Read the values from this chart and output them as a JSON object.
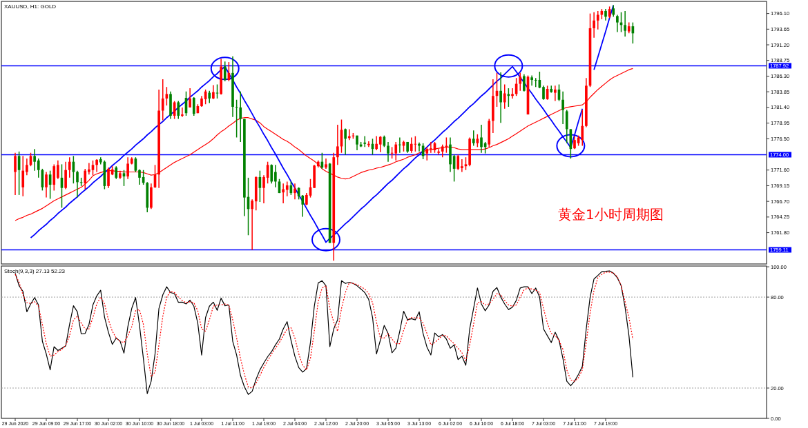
{
  "chart_data": [
    {
      "type": "candlestick",
      "title": "XAUUSD, H1: GOLD",
      "categories": [
        null,
        null,
        null,
        null,
        null,
        null,
        null,
        null,
        null,
        null,
        null,
        null,
        null,
        null,
        null,
        null,
        null,
        null,
        null,
        null,
        null,
        null,
        null,
        null,
        null,
        null,
        null,
        null,
        null,
        null,
        null,
        null,
        null,
        null,
        null,
        null,
        null,
        null,
        null,
        null,
        null,
        null,
        null,
        null,
        null,
        null,
        null,
        null,
        null,
        null,
        null,
        null,
        null,
        null,
        null,
        null,
        null,
        null,
        null,
        null,
        null,
        null,
        null,
        null,
        null,
        null,
        null,
        null,
        null,
        null,
        null,
        null,
        null,
        null,
        null,
        null,
        null,
        null,
        null,
        null,
        null,
        null,
        null,
        null,
        null,
        null,
        null,
        null,
        null,
        null,
        null,
        null,
        null,
        null,
        null,
        null,
        null,
        null,
        null,
        null,
        null,
        null,
        null,
        null,
        null,
        null,
        null,
        null,
        null,
        null,
        null,
        null,
        null,
        null,
        null,
        null,
        null,
        null,
        null,
        null,
        null,
        null,
        null,
        null,
        null,
        null,
        null,
        null,
        null,
        null,
        null,
        null,
        null,
        null,
        null,
        null,
        null,
        null,
        null,
        null,
        null,
        null,
        null,
        null,
        null,
        null,
        null,
        null,
        null,
        null,
        null,
        null,
        null,
        null,
        null,
        null,
        null,
        null,
        null,
        null
      ],
      "ohlc": [
        [
          1771.3,
          1774.3,
          1767.7,
          1773.8
        ],
        [
          1773.8,
          1774.5,
          1767.7,
          1771.6
        ],
        [
          1768.9,
          1773.8,
          1767.5,
          1771.5
        ],
        [
          1771.3,
          1773.4,
          1770.8,
          1772.4
        ],
        [
          1772.4,
          1774.3,
          1772.2,
          1773.8
        ],
        [
          1773.8,
          1774.9,
          1771.5,
          1772.9
        ],
        [
          1773.1,
          1773.4,
          1770.4,
          1771.6
        ],
        [
          1771.6,
          1771.8,
          1768.4,
          1768.9
        ],
        [
          1768.9,
          1771.3,
          1767.3,
          1770.9
        ],
        [
          1770.9,
          1771.5,
          1767.1,
          1769.3
        ],
        [
          1769.3,
          1772.5,
          1768.4,
          1772.2
        ],
        [
          1770.4,
          1773.1,
          1770.2,
          1772.4
        ],
        [
          1770.4,
          1772.5,
          1765.7,
          1768.8
        ],
        [
          1768.8,
          1772.9,
          1768.6,
          1771.6
        ],
        [
          1771.6,
          1773.6,
          1770.4,
          1772.9
        ],
        [
          1772.9,
          1773.8,
          1769.5,
          1771.3
        ],
        [
          1771.3,
          1771.5,
          1767.3,
          1769.7
        ],
        [
          1769.7,
          1770.4,
          1769.1,
          1769.6
        ],
        [
          1769.5,
          1771.8,
          1768.6,
          1771.5
        ],
        [
          1771.3,
          1772.7,
          1770.9,
          1771.7
        ],
        [
          1771.6,
          1773.1,
          1770.8,
          1772.4
        ],
        [
          1772.4,
          1773.3,
          1771.3,
          1773.2
        ],
        [
          1773.3,
          1773.6,
          1772.5,
          1772.8
        ],
        [
          1772.9,
          1773.1,
          1768.6,
          1769.1
        ],
        [
          1769.1,
          1772.0,
          1768.8,
          1771.8
        ],
        [
          1770.9,
          1772.2,
          1770.8,
          1771.7
        ],
        [
          1772.0,
          1772.2,
          1770.2,
          1770.4
        ],
        [
          1770.4,
          1771.5,
          1770.2,
          1771.1
        ],
        [
          1771.1,
          1771.6,
          1769.1,
          1770.6
        ],
        [
          1770.6,
          1773.6,
          1770.2,
          1772.6
        ],
        [
          1772.6,
          1773.6,
          1772.5,
          1773.4
        ],
        [
          1773.4,
          1773.6,
          1771.3,
          1771.5
        ],
        [
          1771.6,
          1771.7,
          1769.3,
          1770.4
        ],
        [
          1770.5,
          1771.6,
          1769.3,
          1769.6
        ],
        [
          1769.6,
          1769.7,
          1765.0,
          1765.7
        ],
        [
          1765.7,
          1769.5,
          1765.5,
          1768.9
        ],
        [
          1768.9,
          1772.4,
          1768.8,
          1770.9
        ],
        [
          1770.9,
          1784.2,
          1768.8,
          1780.9
        ],
        [
          1780.9,
          1785.8,
          1779.4,
          1782.8
        ],
        [
          1782.8,
          1784.6,
          1781.7,
          1783.5
        ],
        [
          1783.5,
          1783.9,
          1779.6,
          1780.1
        ],
        [
          1780.1,
          1782.4,
          1779.6,
          1782.2
        ],
        [
          1782.2,
          1782.4,
          1779.6,
          1780.1
        ],
        [
          1780.1,
          1781.4,
          1779.9,
          1780.3
        ],
        [
          1782.9,
          1783.9,
          1780.1,
          1780.5
        ],
        [
          1781.4,
          1784.4,
          1781.4,
          1782.8
        ],
        [
          1782.9,
          1783.0,
          1780.1,
          1780.4
        ],
        [
          1780.5,
          1781.9,
          1780.5,
          1781.6
        ],
        [
          1781.6,
          1783.2,
          1781.5,
          1782.8
        ],
        [
          1782.7,
          1784.2,
          1781.9,
          1783.9
        ],
        [
          1783.7,
          1784.0,
          1782.1,
          1782.8
        ],
        [
          1782.8,
          1784.9,
          1782.7,
          1783.8
        ],
        [
          1783.7,
          1785.0,
          1782.8,
          1783.6
        ],
        [
          1783.5,
          1789.0,
          1783.4,
          1787.8
        ],
        [
          1787.8,
          1788.6,
          1785.5,
          1785.7
        ],
        [
          1785.7,
          1788.5,
          1785.5,
          1786.8
        ],
        [
          1786.8,
          1789.4,
          1779.9,
          1781.5
        ],
        [
          1781.5,
          1782.6,
          1776.7,
          1781.4
        ],
        [
          1781.4,
          1783.9,
          1776.0,
          1779.6
        ],
        [
          1779.6,
          1779.6,
          1764.4,
          1767.3
        ],
        [
          1767.4,
          1770.4,
          1761.4,
          1765.5
        ],
        [
          1765.5,
          1767.0,
          1759.1,
          1766.8
        ],
        [
          1766.7,
          1770.6,
          1765.3,
          1770.5
        ],
        [
          1770.5,
          1771.5,
          1766.6,
          1768.8
        ],
        [
          1768.8,
          1770.8,
          1766.4,
          1770.5
        ],
        [
          1770.4,
          1772.9,
          1769.5,
          1772.4
        ],
        [
          1772.4,
          1772.5,
          1769.5,
          1769.8
        ],
        [
          1771.3,
          1772.4,
          1768.9,
          1769.8
        ],
        [
          1769.8,
          1770.2,
          1768.0,
          1768.0
        ],
        [
          1768.1,
          1769.5,
          1766.4,
          1768.6
        ],
        [
          1768.5,
          1769.8,
          1767.5,
          1769.2
        ],
        [
          1769.2,
          1769.8,
          1767.7,
          1768.0
        ],
        [
          1768.0,
          1769.5,
          1767.0,
          1768.7
        ],
        [
          1768.8,
          1768.9,
          1767.0,
          1767.5
        ],
        [
          1767.6,
          1767.7,
          1764.3,
          1766.2
        ],
        [
          1766.2,
          1768.0,
          1766.1,
          1767.7
        ],
        [
          1767.6,
          1770.2,
          1767.3,
          1768.9
        ],
        [
          1768.8,
          1772.4,
          1768.8,
          1772.3
        ],
        [
          1772.2,
          1773.1,
          1772.0,
          1772.9
        ],
        [
          1772.9,
          1774.3,
          1771.8,
          1772.0
        ],
        [
          1772.0,
          1773.4,
          1771.8,
          1772.5
        ],
        [
          1772.6,
          1772.7,
          1760.2,
          1760.2
        ],
        [
          1760.2,
          1774.3,
          1757.4,
          1773.6
        ],
        [
          1773.6,
          1778.7,
          1772.4,
          1775.3
        ],
        [
          1775.3,
          1779.5,
          1774.3,
          1777.9
        ],
        [
          1778.0,
          1778.1,
          1774.0,
          1776.5
        ],
        [
          1776.6,
          1778.0,
          1776.3,
          1776.9
        ],
        [
          1776.9,
          1777.4,
          1776.5,
          1777.0
        ],
        [
          1777.0,
          1777.0,
          1774.7,
          1775.6
        ],
        [
          1775.6,
          1776.0,
          1775.2,
          1775.3
        ],
        [
          1775.9,
          1776.9,
          1775.2,
          1775.7
        ],
        [
          1775.5,
          1776.1,
          1775.2,
          1775.7
        ],
        [
          1775.7,
          1776.5,
          1774.0,
          1774.9
        ],
        [
          1774.9,
          1776.9,
          1774.7,
          1775.7
        ],
        [
          1775.6,
          1776.9,
          1774.4,
          1776.8
        ],
        [
          1776.8,
          1777.0,
          1775.2,
          1775.4
        ],
        [
          1775.4,
          1776.0,
          1772.9,
          1774.2
        ],
        [
          1774.2,
          1775.2,
          1773.4,
          1774.3
        ],
        [
          1774.2,
          1776.0,
          1773.1,
          1775.6
        ],
        [
          1775.6,
          1776.7,
          1774.3,
          1775.5
        ],
        [
          1775.4,
          1776.2,
          1774.5,
          1776.0
        ],
        [
          1776.0,
          1776.0,
          1774.3,
          1774.5
        ],
        [
          1774.6,
          1776.7,
          1774.3,
          1775.7
        ],
        [
          1775.6,
          1776.9,
          1774.5,
          1775.7
        ],
        [
          1775.7,
          1775.9,
          1774.5,
          1775.4
        ],
        [
          1775.4,
          1775.8,
          1773.3,
          1773.8
        ],
        [
          1774.2,
          1775.2,
          1773.1,
          1774.9
        ],
        [
          1774.9,
          1776.0,
          1774.3,
          1775.0
        ],
        [
          1774.7,
          1776.0,
          1774.3,
          1775.8
        ],
        [
          1774.3,
          1774.9,
          1774.0,
          1774.5
        ],
        [
          1774.5,
          1775.6,
          1773.6,
          1775.3
        ],
        [
          1775.2,
          1776.7,
          1774.3,
          1775.4
        ],
        [
          1775.6,
          1776.7,
          1771.3,
          1772.5
        ],
        [
          1773.8,
          1774.0,
          1769.8,
          1771.8
        ],
        [
          1771.8,
          1774.0,
          1771.6,
          1773.8
        ],
        [
          1771.9,
          1773.3,
          1771.3,
          1772.2
        ],
        [
          1772.2,
          1773.6,
          1771.6,
          1772.5
        ],
        [
          1772.4,
          1776.7,
          1772.2,
          1776.5
        ],
        [
          1776.5,
          1777.8,
          1775.4,
          1775.8
        ],
        [
          1775.8,
          1777.2,
          1775.2,
          1776.5
        ],
        [
          1776.7,
          1778.7,
          1774.3,
          1775.2
        ],
        [
          1775.8,
          1776.0,
          1774.2,
          1775.2
        ],
        [
          1775.6,
          1779.6,
          1775.2,
          1779.3
        ],
        [
          1779.3,
          1785.8,
          1777.4,
          1783.2
        ],
        [
          1783.2,
          1786.8,
          1781.5,
          1784.0
        ],
        [
          1784.0,
          1786.9,
          1779.0,
          1782.2
        ],
        [
          1782.2,
          1785.0,
          1781.2,
          1783.6
        ],
        [
          1783.5,
          1784.4,
          1781.5,
          1783.2
        ],
        [
          1783.2,
          1784.4,
          1782.8,
          1783.5
        ],
        [
          1783.5,
          1786.0,
          1783.2,
          1785.1
        ],
        [
          1785.1,
          1786.8,
          1784.0,
          1786.2
        ],
        [
          1786.3,
          1786.6,
          1783.9,
          1784.0
        ],
        [
          1780.3,
          1786.4,
          1780.3,
          1786.2
        ],
        [
          1786.1,
          1786.4,
          1784.8,
          1785.7
        ],
        [
          1785.7,
          1786.0,
          1784.6,
          1785.6
        ],
        [
          1785.7,
          1787.0,
          1784.4,
          1784.5
        ],
        [
          1784.6,
          1784.8,
          1782.6,
          1782.7
        ],
        [
          1782.7,
          1784.8,
          1782.6,
          1784.3
        ],
        [
          1784.3,
          1784.8,
          1783.7,
          1783.8
        ],
        [
          1783.7,
          1784.8,
          1782.4,
          1784.2
        ],
        [
          1784.2,
          1785.0,
          1782.4,
          1782.6
        ],
        [
          1782.6,
          1783.9,
          1778.8,
          1781.0
        ],
        [
          1780.8,
          1781.0,
          1775.8,
          1778.0
        ],
        [
          1778.0,
          1778.0,
          1773.4,
          1774.9
        ],
        [
          1775.0,
          1776.9,
          1774.9,
          1776.3
        ],
        [
          1775.8,
          1777.0,
          1775.4,
          1776.7
        ],
        [
          1776.3,
          1781.0,
          1775.4,
          1778.5
        ],
        [
          1778.5,
          1786.0,
          1778.3,
          1784.8
        ],
        [
          1784.8,
          1796.1,
          1784.6,
          1793.8
        ],
        [
          1793.8,
          1796.3,
          1792.3,
          1795.0
        ],
        [
          1795.0,
          1796.5,
          1793.6,
          1795.9
        ],
        [
          1795.9,
          1796.8,
          1795.2,
          1796.5
        ],
        [
          1796.5,
          1796.8,
          1795.0,
          1795.6
        ],
        [
          1795.6,
          1797.2,
          1795.4,
          1796.8
        ],
        [
          1796.9,
          1797.4,
          1795.6,
          1795.9
        ],
        [
          1795.7,
          1795.9,
          1793.2,
          1794.7
        ],
        [
          1794.7,
          1796.3,
          1793.2,
          1794.3
        ],
        [
          1794.3,
          1796.5,
          1792.5,
          1793.4
        ],
        [
          1793.3,
          1794.7,
          1793.0,
          1794.1
        ],
        [
          1794.1,
          1794.7,
          1791.4,
          1793.0
        ]
      ],
      "series": [
        {
          "type": "line",
          "color": "#ff0000",
          "values": [
            1763.7,
            1764.0,
            1764.2,
            1764.5,
            1764.7,
            1765.0,
            1765.3,
            1765.6,
            1766.0,
            1766.4,
            1766.8,
            1767.1,
            1767.4,
            1767.7,
            1768.0,
            1768.3,
            1768.6,
            1768.9,
            1769.4,
            1770.0,
            1770.7,
            1771.0,
            1771.2,
            1771.4,
            1771.5,
            1771.5,
            1771.4,
            1771.4,
            1771.3,
            1771.3,
            1771.3,
            1771.3,
            1771.3,
            1771.2,
            1771.0,
            1770.8,
            1770.9,
            1771.2,
            1771.6,
            1772.0,
            1772.4,
            1772.8,
            1773.1,
            1773.4,
            1773.7,
            1774.0,
            1774.4,
            1774.8,
            1775.2,
            1775.6,
            1776.0,
            1776.5,
            1777.1,
            1777.6,
            1778.0,
            1778.5,
            1778.9,
            1779.4,
            1779.7,
            1779.8,
            1779.8,
            1779.6,
            1779.4,
            1779.0,
            1778.4,
            1778.0,
            1777.6,
            1777.2,
            1776.8,
            1776.4,
            1776.1,
            1775.7,
            1775.2,
            1774.8,
            1774.3,
            1773.8,
            1773.4,
            1773.0,
            1772.5,
            1771.8,
            1771.4,
            1771.1,
            1770.8,
            1770.5,
            1770.3,
            1770.2,
            1770.3,
            1770.6,
            1770.9,
            1771.2,
            1771.4,
            1771.6,
            1771.7,
            1771.9,
            1772.0,
            1772.2,
            1772.4,
            1772.6,
            1772.9,
            1773.1,
            1773.3,
            1773.6,
            1773.8,
            1774.0,
            1774.3,
            1774.5,
            1774.7,
            1774.8,
            1774.9,
            1775.0,
            1775.1,
            1775.2,
            1775.2,
            1775.1,
            1774.9,
            1774.8,
            1774.8,
            1774.8,
            1774.8,
            1774.8,
            1774.8,
            1774.9,
            1775.1,
            1775.4,
            1775.6,
            1775.9,
            1776.2,
            1776.5,
            1776.9,
            1777.3,
            1777.7,
            1778.1,
            1778.5,
            1778.8,
            1779.1,
            1779.4,
            1779.7,
            1780.0,
            1780.3,
            1780.6,
            1780.9,
            1781.2,
            1781.4,
            1781.5,
            1781.6,
            1781.7,
            1781.8,
            1782.3,
            1783.0,
            1783.6,
            1784.2,
            1784.7,
            1785.2,
            1785.7,
            1786.1,
            1786.4,
            1786.7,
            1787.0,
            1787.3,
            1787.5
          ]
        },
        {
          "type": "line",
          "color": "#0000ff",
          "values": [
            null,
            null,
            null,
            null,
            1761.0,
            1761.5,
            1762.1,
            1762.6,
            1763.1,
            1763.7,
            1764.2,
            1764.8,
            1765.3,
            1765.8,
            1766.4,
            1766.9,
            1767.4,
            1768.0,
            1768.5,
            1769.0,
            1769.6,
            1770.1,
            1770.6,
            1771.2,
            1771.7,
            1772.3,
            1772.8,
            1773.3,
            1773.9,
            1774.4,
            1774.9,
            1775.5,
            1776.0,
            1776.5,
            1777.1,
            1777.6,
            1778.2,
            1778.7,
            1779.2,
            1779.8,
            1780.3,
            1780.8,
            1781.4,
            1781.9,
            1782.4,
            1783.0,
            1783.5,
            1784.0,
            1784.6,
            1785.1,
            1785.6,
            1786.2,
            1786.7,
            1787.3,
            1787.8,
            1786.7,
            1785.7,
            1784.6,
            1783.6,
            1782.5,
            1781.5,
            1780.4,
            1779.3,
            1778.3,
            1777.2,
            1776.2,
            1775.1,
            1774.1,
            1773.0,
            1771.9,
            1770.9,
            1769.8,
            1768.8,
            1767.7,
            1766.7,
            1765.6,
            1764.5,
            1763.5,
            1762.4,
            1761.4,
            1760.3,
            1760.9,
            1761.4,
            1762.0,
            1762.6,
            1763.2,
            1763.7,
            1764.3,
            1764.9,
            1765.5,
            1766.0,
            1766.6,
            1767.2,
            1767.7,
            1768.3,
            1768.9,
            1769.5,
            1770.0,
            1770.6,
            1771.2,
            1771.8,
            1772.3,
            1772.9,
            1773.5,
            1774.0,
            1774.6,
            1775.2,
            1775.8,
            1776.3,
            1776.9,
            1777.5,
            1778.0,
            1778.6,
            1779.2,
            1779.7,
            1780.3,
            1780.9,
            1781.5,
            1782.0,
            1782.6,
            1783.2,
            1783.7,
            1784.3,
            1784.9,
            1785.5,
            1786.0,
            1786.6,
            1787.2,
            1787.8,
            1787.0,
            1786.1,
            1785.3,
            1784.4,
            1783.6,
            1782.7,
            1781.9,
            1781.1,
            1780.2,
            1779.4,
            1778.5,
            1777.7,
            1776.8,
            1776.0,
            1775.1,
            1777.1,
            1779.2,
            1781.2,
            null,
            null,
            1787.3,
            1789.3,
            1791.3,
            1793.3,
            1795.4,
            1797.4,
            null,
            null,
            null,
            null,
            null
          ]
        },
        {
          "type": "scatter",
          "marker": "circle",
          "color": "#0000ff",
          "values": [
            null,
            null,
            null,
            null,
            null,
            null,
            null,
            null,
            null,
            null,
            null,
            null,
            null,
            null,
            null,
            null,
            null,
            null,
            null,
            null,
            null,
            null,
            null,
            null,
            null,
            null,
            null,
            null,
            null,
            null,
            null,
            null,
            null,
            null,
            null,
            null,
            null,
            null,
            null,
            null,
            null,
            null,
            null,
            null,
            null,
            null,
            null,
            null,
            null,
            null,
            null,
            null,
            null,
            null,
            1787.5,
            null,
            null,
            null,
            null,
            null,
            null,
            null,
            null,
            null,
            null,
            null,
            null,
            null,
            null,
            null,
            null,
            null,
            null,
            null,
            null,
            null,
            null,
            null,
            null,
            null,
            1760.7,
            null,
            null,
            null,
            null,
            null,
            null,
            null,
            null,
            null,
            null,
            null,
            null,
            null,
            null,
            null,
            null,
            null,
            null,
            null,
            null,
            null,
            null,
            null,
            null,
            null,
            null,
            null,
            null,
            null,
            null,
            null,
            null,
            null,
            null,
            null,
            null,
            null,
            null,
            null,
            null,
            null,
            null,
            null,
            null,
            null,
            null,
            1787.9,
            null,
            null,
            null,
            null,
            null,
            null,
            null,
            null,
            null,
            null,
            null,
            null,
            null,
            null,
            null,
            1775.4,
            null,
            null,
            null,
            null,
            null,
            null,
            null,
            null,
            null,
            null,
            null,
            null,
            null,
            null,
            null,
            null
          ]
        }
      ],
      "ylim": [
        1756.9,
        1798.0
      ],
      "yticks": [
        {
          "value": 1796.1,
          "label": "1796.10"
        },
        1793.65,
        {
          "value": 1791.2,
          "label": "1791.20"
        },
        1788.75,
        {
          "value": 1786.3,
          "label": "1786.30"
        },
        1783.85,
        {
          "value": 1781.4,
          "label": "1781.40"
        },
        1778.95,
        {
          "value": 1776.5,
          "label": "1776.50"
        },
        {
          "value": 1771.6,
          "label": "1771.60"
        },
        1769.15,
        {
          "value": 1766.7,
          "label": "1766.70"
        },
        1764.25,
        {
          "value": 1761.8,
          "label": "1761.80"
        }
      ],
      "ref_lines": [
        {
          "axis": "y",
          "value": 1787.92,
          "label": "1787.92",
          "color": "#0000ff"
        },
        {
          "axis": "y",
          "value": 1774.0,
          "label": "1774.00",
          "color": "#0000ff"
        },
        {
          "axis": "y",
          "value": 1759.11,
          "label": "1759.11",
          "color": "#0000ff"
        }
      ],
      "annotations": [
        "黄金1小时周期图"
      ]
    },
    {
      "type": "line",
      "title": "Stoch(9,3,3) 27.13 52.23",
      "categories": [
        "29 Jun 2020",
        null,
        null,
        null,
        null,
        null,
        null,
        null,
        "29 Jun 09:00",
        null,
        null,
        null,
        null,
        null,
        null,
        null,
        "29 Jun 17:00",
        null,
        null,
        null,
        null,
        null,
        null,
        null,
        "30 Jun 02:00",
        null,
        null,
        null,
        null,
        null,
        null,
        null,
        "30 Jun 10:00",
        null,
        null,
        null,
        null,
        null,
        null,
        null,
        "30 Jun 18:00",
        null,
        null,
        null,
        null,
        null,
        null,
        null,
        "1 Jul 03:00",
        null,
        null,
        null,
        null,
        null,
        null,
        null,
        "1 Jul 11:00",
        null,
        null,
        null,
        null,
        null,
        null,
        null,
        "1 Jul 19:00",
        null,
        null,
        null,
        null,
        null,
        null,
        null,
        "2 Jul 04:00",
        null,
        null,
        null,
        null,
        null,
        null,
        null,
        "2 Jul 12:00",
        null,
        null,
        null,
        null,
        null,
        null,
        null,
        "2 Jul 20:00",
        null,
        null,
        null,
        null,
        null,
        null,
        null,
        "3 Jul 05:00",
        null,
        null,
        null,
        null,
        null,
        null,
        null,
        "3 Jul 13:00",
        null,
        null,
        null,
        null,
        null,
        null,
        null,
        "6 Jul 02:00",
        null,
        null,
        null,
        null,
        null,
        null,
        null,
        "6 Jul 10:00",
        null,
        null,
        null,
        null,
        null,
        null,
        null,
        "6 Jul 18:00",
        null,
        null,
        null,
        null,
        null,
        null,
        null,
        "7 Jul 03:00",
        null,
        null,
        null,
        null,
        null,
        null,
        null,
        "7 Jul 11:00",
        null,
        null,
        null,
        null,
        null,
        null,
        null,
        "7 Jul 19:00",
        null,
        null,
        null,
        null,
        null,
        null,
        null
      ],
      "series": [
        {
          "color": "#000000",
          "line_style": "solid",
          "values": [
            95.8,
            87.5,
            83.8,
            70.3,
            75.5,
            79.7,
            74.8,
            50.8,
            42.5,
            32,
            47.3,
            44.8,
            46.3,
            47.8,
            62,
            74.3,
            70.3,
            55.7,
            56,
            62,
            74.8,
            80.8,
            84.5,
            66.8,
            56.8,
            48.8,
            53,
            51,
            43,
            60.5,
            72.5,
            79.7,
            61.3,
            39.5,
            16.3,
            24.5,
            42.5,
            72.5,
            81.5,
            86.8,
            83,
            82.3,
            76.6,
            76.7,
            75.5,
            78,
            74,
            62.8,
            41.8,
            66.5,
            74,
            76.7,
            71.3,
            79.3,
            74.3,
            74.8,
            50.8,
            41.8,
            28.3,
            20.8,
            15.8,
            17.8,
            25.7,
            32,
            36.5,
            40.7,
            44,
            48.5,
            52.3,
            59,
            63.8,
            51.5,
            41,
            33.5,
            30.5,
            32.8,
            50,
            74,
            89.3,
            90.8,
            87.5,
            47.3,
            59,
            65,
            90.8,
            89,
            89.8,
            89,
            87.5,
            85.3,
            83,
            78.5,
            66.5,
            42.5,
            51.5,
            61.3,
            56,
            43.3,
            46.3,
            57.5,
            70.7,
            65,
            65.8,
            65,
            70.3,
            56,
            47,
            41.8,
            56.3,
            53.8,
            55.3,
            52.3,
            46.3,
            48.5,
            38.8,
            41,
            35,
            59,
            72.5,
            86,
            75.5,
            71,
            74.8,
            83.8,
            86.3,
            80,
            75.5,
            71.8,
            73.3,
            77.8,
            86,
            86.8,
            86.8,
            82.3,
            86,
            80,
            59,
            54.5,
            50,
            56.8,
            51.5,
            39.5,
            24.5,
            21.5,
            24.5,
            29,
            34.3,
            59,
            80,
            92,
            94.3,
            96.8,
            97,
            97.3,
            95.8,
            92.8,
            87.5,
            73.3,
            54.5,
            27.1
          ]
        },
        {
          "color": "#ff0000",
          "line_style": "dotted",
          "values": [
            95,
            89.8,
            81.5,
            76.3,
            75.8,
            77,
            74,
            62,
            49.3,
            41,
            41.8,
            44,
            45.5,
            48.2,
            54.5,
            65,
            67.3,
            62.8,
            59,
            59,
            66.5,
            75.5,
            80,
            75.5,
            65,
            57.5,
            53,
            50.8,
            50,
            54.5,
            60.5,
            71,
            71.8,
            62,
            42.5,
            27.5,
            30.5,
            48.5,
            67.3,
            80,
            83.8,
            83,
            80,
            77.8,
            76.3,
            77,
            76.3,
            71,
            59,
            57.5,
            65,
            74,
            74.8,
            74.8,
            75.5,
            74.8,
            65,
            53,
            39.5,
            29,
            20.8,
            20,
            23,
            28.3,
            33.5,
            38,
            42.5,
            46.3,
            50,
            54.5,
            59,
            59.8,
            53,
            42.5,
            35,
            32,
            39.5,
            57.5,
            77,
            86,
            87.5,
            72.5,
            63.5,
            57.5,
            72.5,
            83,
            89.5,
            89,
            88.3,
            86.8,
            85.3,
            82.3,
            76.3,
            63.5,
            53,
            53,
            56,
            52.3,
            49.3,
            49.3,
            58.3,
            65,
            66.5,
            66.2,
            66.5,
            62.8,
            56,
            48.5,
            50,
            52.3,
            54.8,
            54.5,
            51.5,
            49.3,
            46.3,
            43.3,
            38,
            48.5,
            62,
            76.3,
            77,
            74.8,
            75.5,
            78.5,
            82.3,
            81.5,
            77.8,
            74.8,
            74,
            74.8,
            80,
            84.8,
            86,
            85.3,
            84.5,
            83,
            72.5,
            62.8,
            56,
            54.5,
            51.5,
            45.5,
            32,
            25.3,
            24.5,
            26.8,
            32,
            50,
            69.5,
            84.5,
            92.8,
            95,
            96.5,
            96.5,
            95.8,
            93.5,
            87.5,
            77,
            66.5,
            52.2
          ]
        }
      ],
      "ylim": [
        0,
        100.5
      ],
      "yticks": [
        {
          "value": 0,
          "label": "0.00"
        },
        {
          "value": 20,
          "label": "20.00"
        },
        {
          "value": 80,
          "label": "80.00"
        },
        {
          "value": 100,
          "label": "100.00"
        }
      ],
      "ref_lines": [
        {
          "axis": "y",
          "value": 20,
          "color": "#a0a0a0",
          "line_style": "dotted"
        },
        {
          "axis": "y",
          "value": 80,
          "color": "#a0a0a0",
          "line_style": "dotted"
        }
      ]
    }
  ]
}
